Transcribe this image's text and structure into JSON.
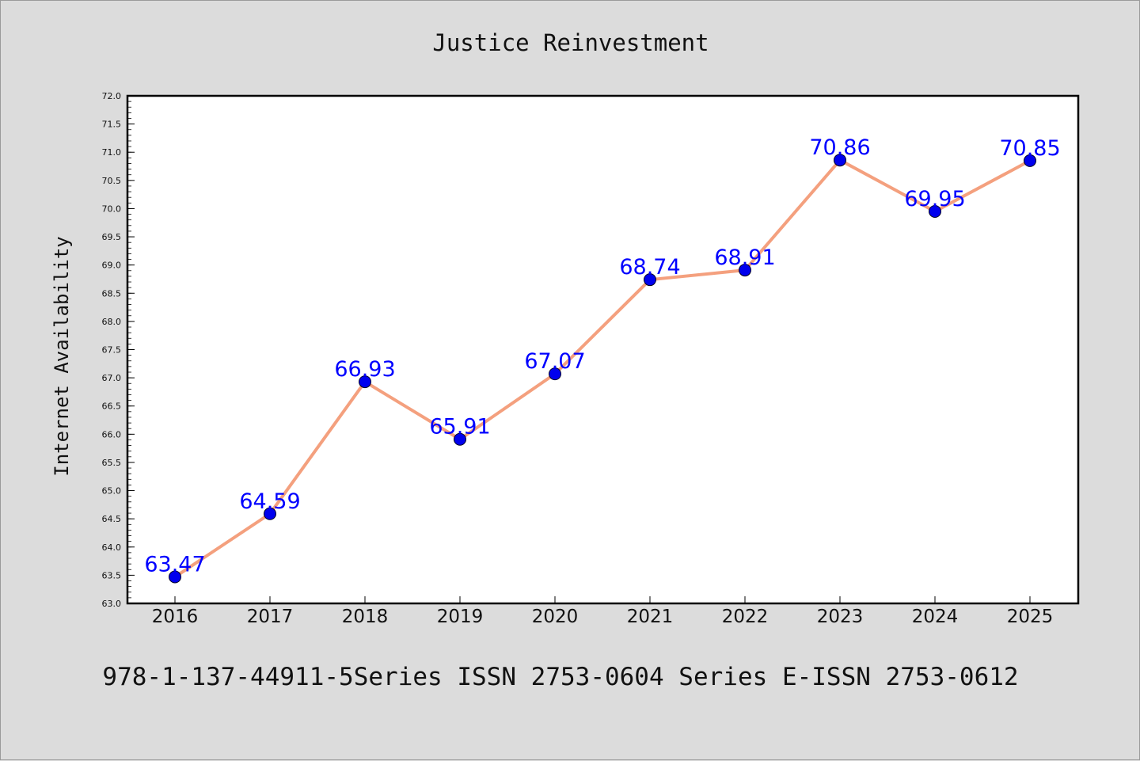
{
  "chart_data": {
    "type": "line",
    "title": "Justice Reinvestment",
    "xlabel": "",
    "ylabel": "Internet Availability",
    "x": [
      "2016",
      "2017",
      "2018",
      "2019",
      "2020",
      "2021",
      "2022",
      "2023",
      "2024",
      "2025"
    ],
    "series": [
      {
        "values": [
          63.47,
          64.59,
          66.93,
          65.91,
          67.07,
          68.74,
          68.91,
          70.86,
          69.95,
          70.85
        ],
        "line_color": "#f4a07e",
        "marker_color": "#0000ee",
        "label_color": "#0000ff"
      }
    ],
    "data_labels": [
      "63.47",
      "64.59",
      "66.93",
      "65.91",
      "67.07",
      "68.74",
      "68.91",
      "70.86",
      "69.95",
      "70.85"
    ],
    "ylim": [
      63.0,
      72.0
    ],
    "y_ticks": [
      "63.0",
      "63.5",
      "64.0",
      "64.5",
      "65.0",
      "65.5",
      "66.0",
      "66.5",
      "67.0",
      "67.5",
      "68.0",
      "68.5",
      "69.0",
      "69.5",
      "70.0",
      "70.5",
      "71.0",
      "71.5",
      "72.0"
    ],
    "grid": false,
    "legend": "none"
  },
  "footer": "978-1-137-44911-5Series ISSN 2753-0604 Series E-ISSN 2753-0612",
  "colors": {
    "background": "#dcdcdc",
    "plot_background": "#ffffff"
  }
}
